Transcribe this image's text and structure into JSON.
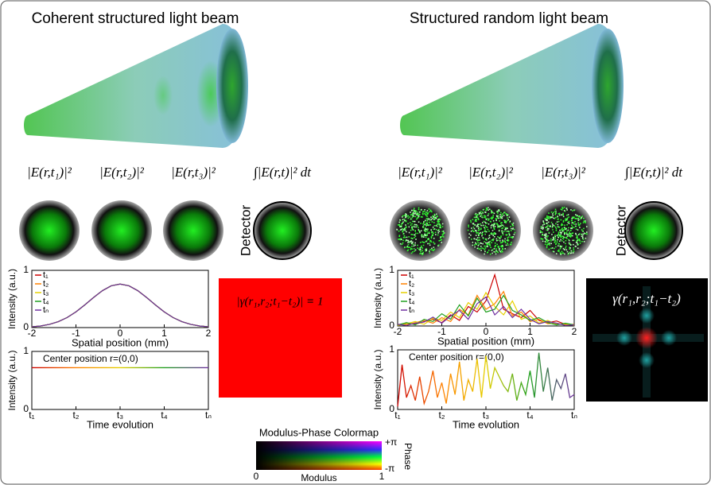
{
  "panels": [
    {
      "title": "Coherent structured light beam",
      "formulas": [
        "|E(r,t₁)|²",
        "|E(r,t₂)|²",
        "|E(r,t₃)|²",
        "∫|E(r,t)|² dt"
      ],
      "detector": "Detector",
      "coherence": "|γ(r₁,r₂;t₁−t₂)| ≡ 1"
    },
    {
      "title": "Structured random light beam",
      "formulas": [
        "|E(r,t₁)|²",
        "|E(r,t₂)|²",
        "|E(r,t₃)|²",
        "∫|E(r,t)|² dt"
      ],
      "detector": "Detector",
      "coherence": "γ(r₁,r₂;t₁−t₂)"
    }
  ],
  "chart_data": [
    {
      "type": "line",
      "xlabel": "Spatial position (mm)",
      "ylabel": "Intensity (a.u.)",
      "xlim": [
        -2,
        2
      ],
      "ylim": [
        0,
        1
      ],
      "xticks": [
        -2,
        -1,
        0,
        1,
        2
      ],
      "yticks": [
        0,
        1
      ],
      "x": [
        -2,
        -1.8,
        -1.6,
        -1.4,
        -1.2,
        -1,
        -0.8,
        -0.6,
        -0.4,
        -0.2,
        0,
        0.2,
        0.4,
        0.6,
        0.8,
        1,
        1.2,
        1.4,
        1.6,
        1.8,
        2
      ],
      "series": [
        {
          "name": "t₁",
          "color": "#cc0000",
          "values": [
            0.013,
            0.028,
            0.056,
            0.103,
            0.175,
            0.274,
            0.396,
            0.526,
            0.645,
            0.73,
            0.76,
            0.73,
            0.645,
            0.526,
            0.396,
            0.274,
            0.175,
            0.103,
            0.056,
            0.028,
            0.013
          ]
        },
        {
          "name": "t₂",
          "color": "#ff8000",
          "values": [
            0.013,
            0.028,
            0.056,
            0.103,
            0.175,
            0.274,
            0.396,
            0.526,
            0.645,
            0.73,
            0.76,
            0.73,
            0.645,
            0.526,
            0.396,
            0.274,
            0.175,
            0.103,
            0.056,
            0.028,
            0.013
          ]
        },
        {
          "name": "t₃",
          "color": "#e6d000",
          "values": [
            0.013,
            0.028,
            0.056,
            0.103,
            0.175,
            0.274,
            0.396,
            0.526,
            0.645,
            0.73,
            0.76,
            0.73,
            0.645,
            0.526,
            0.396,
            0.274,
            0.175,
            0.103,
            0.056,
            0.028,
            0.013
          ]
        },
        {
          "name": "t₄",
          "color": "#20a020",
          "values": [
            0.013,
            0.028,
            0.056,
            0.103,
            0.175,
            0.274,
            0.396,
            0.526,
            0.645,
            0.73,
            0.76,
            0.73,
            0.645,
            0.526,
            0.396,
            0.274,
            0.175,
            0.103,
            0.056,
            0.028,
            0.013
          ]
        },
        {
          "name": "tₙ",
          "color": "#7030a0",
          "values": [
            0.013,
            0.028,
            0.056,
            0.103,
            0.175,
            0.274,
            0.396,
            0.526,
            0.645,
            0.73,
            0.76,
            0.73,
            0.645,
            0.526,
            0.396,
            0.274,
            0.175,
            0.103,
            0.056,
            0.028,
            0.013
          ]
        }
      ]
    },
    {
      "type": "gradient-line",
      "xlabel": "Time evolution",
      "ylabel": "Intensity (a.u.)",
      "annotation": "Center position r=(0,0)",
      "xlim": [
        0,
        4
      ],
      "ylim": [
        0,
        1
      ],
      "yticks": [
        0,
        1
      ],
      "xticks": [
        {
          "value": 0,
          "label": "t₁"
        },
        {
          "value": 1,
          "label": "t₂"
        },
        {
          "value": 2,
          "label": "t₃"
        },
        {
          "value": 3,
          "label": "t₄"
        },
        {
          "value": 4,
          "label": "tₙ"
        }
      ],
      "colors": [
        "#cc0000",
        "#ff8000",
        "#e6d000",
        "#20a020",
        "#7030a0"
      ],
      "x": [
        0,
        4
      ],
      "values": [
        0.72,
        0.72
      ]
    },
    {
      "type": "line",
      "xlabel": "Spatial position (mm)",
      "ylabel": "Intensity (a.u.)",
      "xlim": [
        -2,
        2
      ],
      "ylim": [
        0,
        1
      ],
      "xticks": [
        -2,
        -1,
        0,
        1,
        2
      ],
      "yticks": [
        0,
        1
      ],
      "x": [
        -2,
        -1.8,
        -1.6,
        -1.4,
        -1.2,
        -1,
        -0.8,
        -0.6,
        -0.4,
        -0.2,
        0,
        0.2,
        0.4,
        0.6,
        0.8,
        1,
        1.2,
        1.4,
        1.6,
        1.8,
        2
      ],
      "series": [
        {
          "name": "t₁",
          "color": "#cc0000",
          "values": [
            0.02,
            0.05,
            0.03,
            0.08,
            0.12,
            0.06,
            0.2,
            0.1,
            0.35,
            0.25,
            0.45,
            0.92,
            0.3,
            0.22,
            0.15,
            0.28,
            0.1,
            0.06,
            0.09,
            0.03,
            0.02
          ]
        },
        {
          "name": "t₂",
          "color": "#ff8000",
          "values": [
            0.03,
            0.02,
            0.06,
            0.1,
            0.05,
            0.15,
            0.08,
            0.3,
            0.2,
            0.55,
            0.3,
            0.4,
            0.62,
            0.18,
            0.25,
            0.08,
            0.12,
            0.04,
            0.05,
            0.02,
            0.03
          ]
        },
        {
          "name": "t₃",
          "color": "#e6d000",
          "values": [
            0.01,
            0.04,
            0.08,
            0.03,
            0.14,
            0.1,
            0.25,
            0.15,
            0.42,
            0.3,
            0.6,
            0.35,
            0.2,
            0.45,
            0.12,
            0.18,
            0.05,
            0.1,
            0.03,
            0.04,
            0.01
          ]
        },
        {
          "name": "t₄",
          "color": "#20a020",
          "values": [
            0.02,
            0.06,
            0.02,
            0.12,
            0.08,
            0.22,
            0.12,
            0.38,
            0.18,
            0.5,
            0.25,
            0.3,
            0.55,
            0.28,
            0.2,
            0.1,
            0.15,
            0.06,
            0.02,
            0.05,
            0.02
          ]
        },
        {
          "name": "tₙ",
          "color": "#7030a0",
          "values": [
            0.03,
            0.01,
            0.05,
            0.07,
            0.16,
            0.05,
            0.18,
            0.28,
            0.12,
            0.4,
            0.52,
            0.2,
            0.35,
            0.15,
            0.3,
            0.12,
            0.04,
            0.08,
            0.05,
            0.01,
            0.02
          ]
        }
      ]
    },
    {
      "type": "gradient-line",
      "xlabel": "Time evolution",
      "ylabel": "Intensity (a.u.)",
      "annotation": "Center position r=(0,0)",
      "xlim": [
        0,
        4
      ],
      "ylim": [
        0,
        1
      ],
      "yticks": [
        0,
        1
      ],
      "xticks": [
        {
          "value": 0,
          "label": "t₁"
        },
        {
          "value": 1,
          "label": "t₂"
        },
        {
          "value": 2,
          "label": "t₃"
        },
        {
          "value": 3,
          "label": "t₄"
        },
        {
          "value": 4,
          "label": "tₙ"
        }
      ],
      "colors": [
        "#cc0000",
        "#ff8000",
        "#e6d000",
        "#20a020",
        "#7030a0"
      ],
      "x": [
        0,
        0.1,
        0.2,
        0.3,
        0.4,
        0.5,
        0.6,
        0.7,
        0.8,
        0.9,
        1,
        1.1,
        1.2,
        1.3,
        1.4,
        1.5,
        1.6,
        1.7,
        1.8,
        1.9,
        2,
        2.1,
        2.2,
        2.3,
        2.4,
        2.5,
        2.6,
        2.7,
        2.8,
        2.9,
        3,
        3.1,
        3.2,
        3.3,
        3.4,
        3.5,
        3.6,
        3.7,
        3.8,
        3.9,
        4
      ],
      "values": [
        0.05,
        0.75,
        0.2,
        0.4,
        0.15,
        0.55,
        0.1,
        0.3,
        0.65,
        0.2,
        0.45,
        0.1,
        0.6,
        0.25,
        0.8,
        0.15,
        0.5,
        0.3,
        0.85,
        0.2,
        0.9,
        0.35,
        0.7,
        0.55,
        0.4,
        0.3,
        0.6,
        0.15,
        0.45,
        0.25,
        0.65,
        0.2,
        0.95,
        0.3,
        0.7,
        0.15,
        0.5,
        0.35,
        0.6,
        0.2,
        0.25
      ]
    }
  ],
  "colormap": {
    "title": "Modulus-Phase Colormap",
    "phase_label": "Phase",
    "phase_ticks": [
      "+π",
      "-π"
    ],
    "modulus_label": "Modulus",
    "modulus_ticks": [
      0,
      1
    ]
  }
}
